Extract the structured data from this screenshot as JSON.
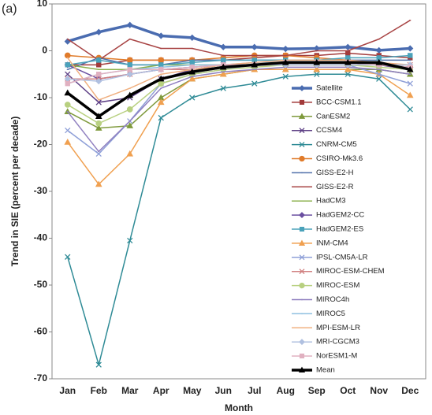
{
  "chart_data": {
    "type": "line",
    "panel_label": "(a)",
    "x_label": "Month",
    "y_label": "Trend in SIE (percent per decade)",
    "categories": [
      "Jan",
      "Feb",
      "Mar",
      "Apr",
      "May",
      "Jun",
      "Jul",
      "Aug",
      "Sep",
      "Oct",
      "Nov",
      "Dec"
    ],
    "ylim": [
      -70,
      10
    ],
    "yticks": [
      10,
      0,
      -10,
      -20,
      -30,
      -40,
      -50,
      -60,
      -70
    ],
    "grid": false,
    "legend": "right",
    "series": [
      {
        "name": "Satellite",
        "color": "#4a6cb0",
        "marker": "diamond",
        "width": 3.5,
        "values": [
          2,
          4,
          5.5,
          3.2,
          2.8,
          0.8,
          0.8,
          0.4,
          0.5,
          0.8,
          0.1,
          0.5
        ]
      },
      {
        "name": "BCC-CSM1.1",
        "color": "#a23b3b",
        "marker": "square",
        "width": 1.5,
        "values": [
          -3,
          -3,
          -2,
          -2,
          -2,
          -2,
          -1.5,
          -1,
          -1,
          -0.5,
          -1,
          -1.5
        ]
      },
      {
        "name": "CanESM2",
        "color": "#7f9a3c",
        "marker": "triangle",
        "width": 1.5,
        "values": [
          -13,
          -16.5,
          -16,
          -10,
          -6,
          -5,
          -4,
          -4,
          -4,
          -4,
          -4,
          -5
        ]
      },
      {
        "name": "CCSM4",
        "color": "#5d3f85",
        "marker": "x",
        "width": 1.5,
        "values": [
          -5,
          -11,
          -10,
          -6,
          -4,
          -3,
          -3,
          -2.5,
          -2.5,
          -2.5,
          -3,
          -4
        ]
      },
      {
        "name": "CNRM-CM5",
        "color": "#2f8b96",
        "marker": "x",
        "width": 1.5,
        "values": [
          -44,
          -67,
          -40.5,
          -14.3,
          -10,
          -8,
          -7,
          -5.5,
          -5,
          -5,
          -6,
          -12.5
        ]
      },
      {
        "name": "CSIRO-Mk3.6",
        "color": "#e07b2a",
        "marker": "circle",
        "width": 1.5,
        "values": [
          -1,
          -1.5,
          -2,
          -2,
          -2,
          -1.5,
          -1,
          -1,
          -1.5,
          -2,
          -3,
          -3.5
        ]
      },
      {
        "name": "GISS-E2-H",
        "color": "#5070aa",
        "marker": "none",
        "width": 1.5,
        "values": [
          -4,
          -1.5,
          -3,
          -3,
          -2,
          -2,
          -2,
          -2,
          -2,
          -2,
          -2,
          -2
        ]
      },
      {
        "name": "GISS-E2-R",
        "color": "#a84444",
        "marker": "none",
        "width": 1.5,
        "values": [
          2.5,
          -2,
          2.5,
          0.5,
          0.5,
          -1,
          -1,
          -1,
          0,
          0,
          2.5,
          6.5
        ]
      },
      {
        "name": "HadCM3",
        "color": "#8bb04c",
        "marker": "none",
        "width": 1.5,
        "values": [
          -3,
          -4,
          -4,
          -3,
          -3,
          -3,
          -3,
          -3,
          -3,
          -3,
          -3,
          -3
        ]
      },
      {
        "name": "HadGEM2-CC",
        "color": "#6a4fa0",
        "marker": "diamond",
        "width": 1.5,
        "values": [
          -3,
          -6,
          -5,
          -4,
          -3.5,
          -3,
          -3,
          -2.5,
          -2.5,
          -2.5,
          -3,
          -3.5
        ]
      },
      {
        "name": "HadGEM2-ES",
        "color": "#4aa2ba",
        "marker": "square",
        "width": 1.5,
        "values": [
          -3,
          -2,
          -3,
          -3,
          -2.5,
          -2,
          -2,
          -2,
          -2,
          -1.5,
          -1.5,
          -1
        ]
      },
      {
        "name": "INM-CM4",
        "color": "#f0a050",
        "marker": "triangle",
        "width": 1.5,
        "values": [
          -19.5,
          -28.5,
          -22,
          -11,
          -6,
          -5,
          -4,
          -4,
          -4,
          -4,
          -5,
          -9.5
        ]
      },
      {
        "name": "IPSL-CM5A-LR",
        "color": "#8fa0d8",
        "marker": "x",
        "width": 1.5,
        "values": [
          -17,
          -22,
          -15,
          -7,
          -5,
          -4,
          -3,
          -3,
          -3,
          -3,
          -5,
          -7
        ]
      },
      {
        "name": "MIROC-ESM-CHEM",
        "color": "#d08080",
        "marker": "x",
        "width": 1.5,
        "values": [
          -6,
          -6,
          -5,
          -4,
          -4,
          -3.5,
          -3,
          -3,
          -3,
          -3,
          -3,
          -3
        ]
      },
      {
        "name": "MIROC-ESM",
        "color": "#b8d080",
        "marker": "circle",
        "width": 1.5,
        "values": [
          -11.5,
          -15.5,
          -12.5,
          -7,
          -5,
          -4,
          -3.5,
          -3,
          -3,
          -3,
          -3.5,
          -4
        ]
      },
      {
        "name": "MIROC4h",
        "color": "#9080c0",
        "marker": "none",
        "width": 1.5,
        "values": [
          -13,
          -21.5,
          -15,
          -8,
          -5.5,
          -4.5,
          -4,
          -3.5,
          -3.5,
          -3.5,
          -4,
          -5
        ]
      },
      {
        "name": "MIROC5",
        "color": "#90c0e0",
        "marker": "none",
        "width": 1.5,
        "values": [
          -7,
          -5,
          -4,
          -3.5,
          -3,
          -3,
          -2.5,
          -2.5,
          -2.5,
          -2.5,
          -3,
          -3
        ]
      },
      {
        "name": "MPI-ESM-LR",
        "color": "#f0b080",
        "marker": "none",
        "width": 1.5,
        "values": [
          -1.5,
          -10.5,
          -8,
          -5,
          -4,
          -3,
          -2.5,
          -2,
          -2,
          -2,
          -2.5,
          -3
        ]
      },
      {
        "name": "MRI-CGCM3",
        "color": "#b0c0e0",
        "marker": "diamond",
        "width": 1.5,
        "values": [
          -6,
          -6.5,
          -5,
          -4,
          -3.5,
          -3,
          -3,
          -3,
          -3,
          -3,
          -3,
          -3
        ]
      },
      {
        "name": "NorESM1-M",
        "color": "#e0b0c0",
        "marker": "square",
        "width": 1.5,
        "values": [
          -7,
          -5,
          -4,
          -4,
          -3.5,
          -3,
          -3,
          -2.5,
          -2.5,
          -2.5,
          -3,
          -3.5
        ]
      },
      {
        "name": "Mean",
        "color": "#000000",
        "marker": "triangle",
        "width": 3.5,
        "values": [
          -9,
          -14,
          -9.5,
          -6,
          -4.5,
          -3.5,
          -3,
          -2.5,
          -2.5,
          -2.5,
          -2.5,
          -4
        ]
      }
    ]
  }
}
